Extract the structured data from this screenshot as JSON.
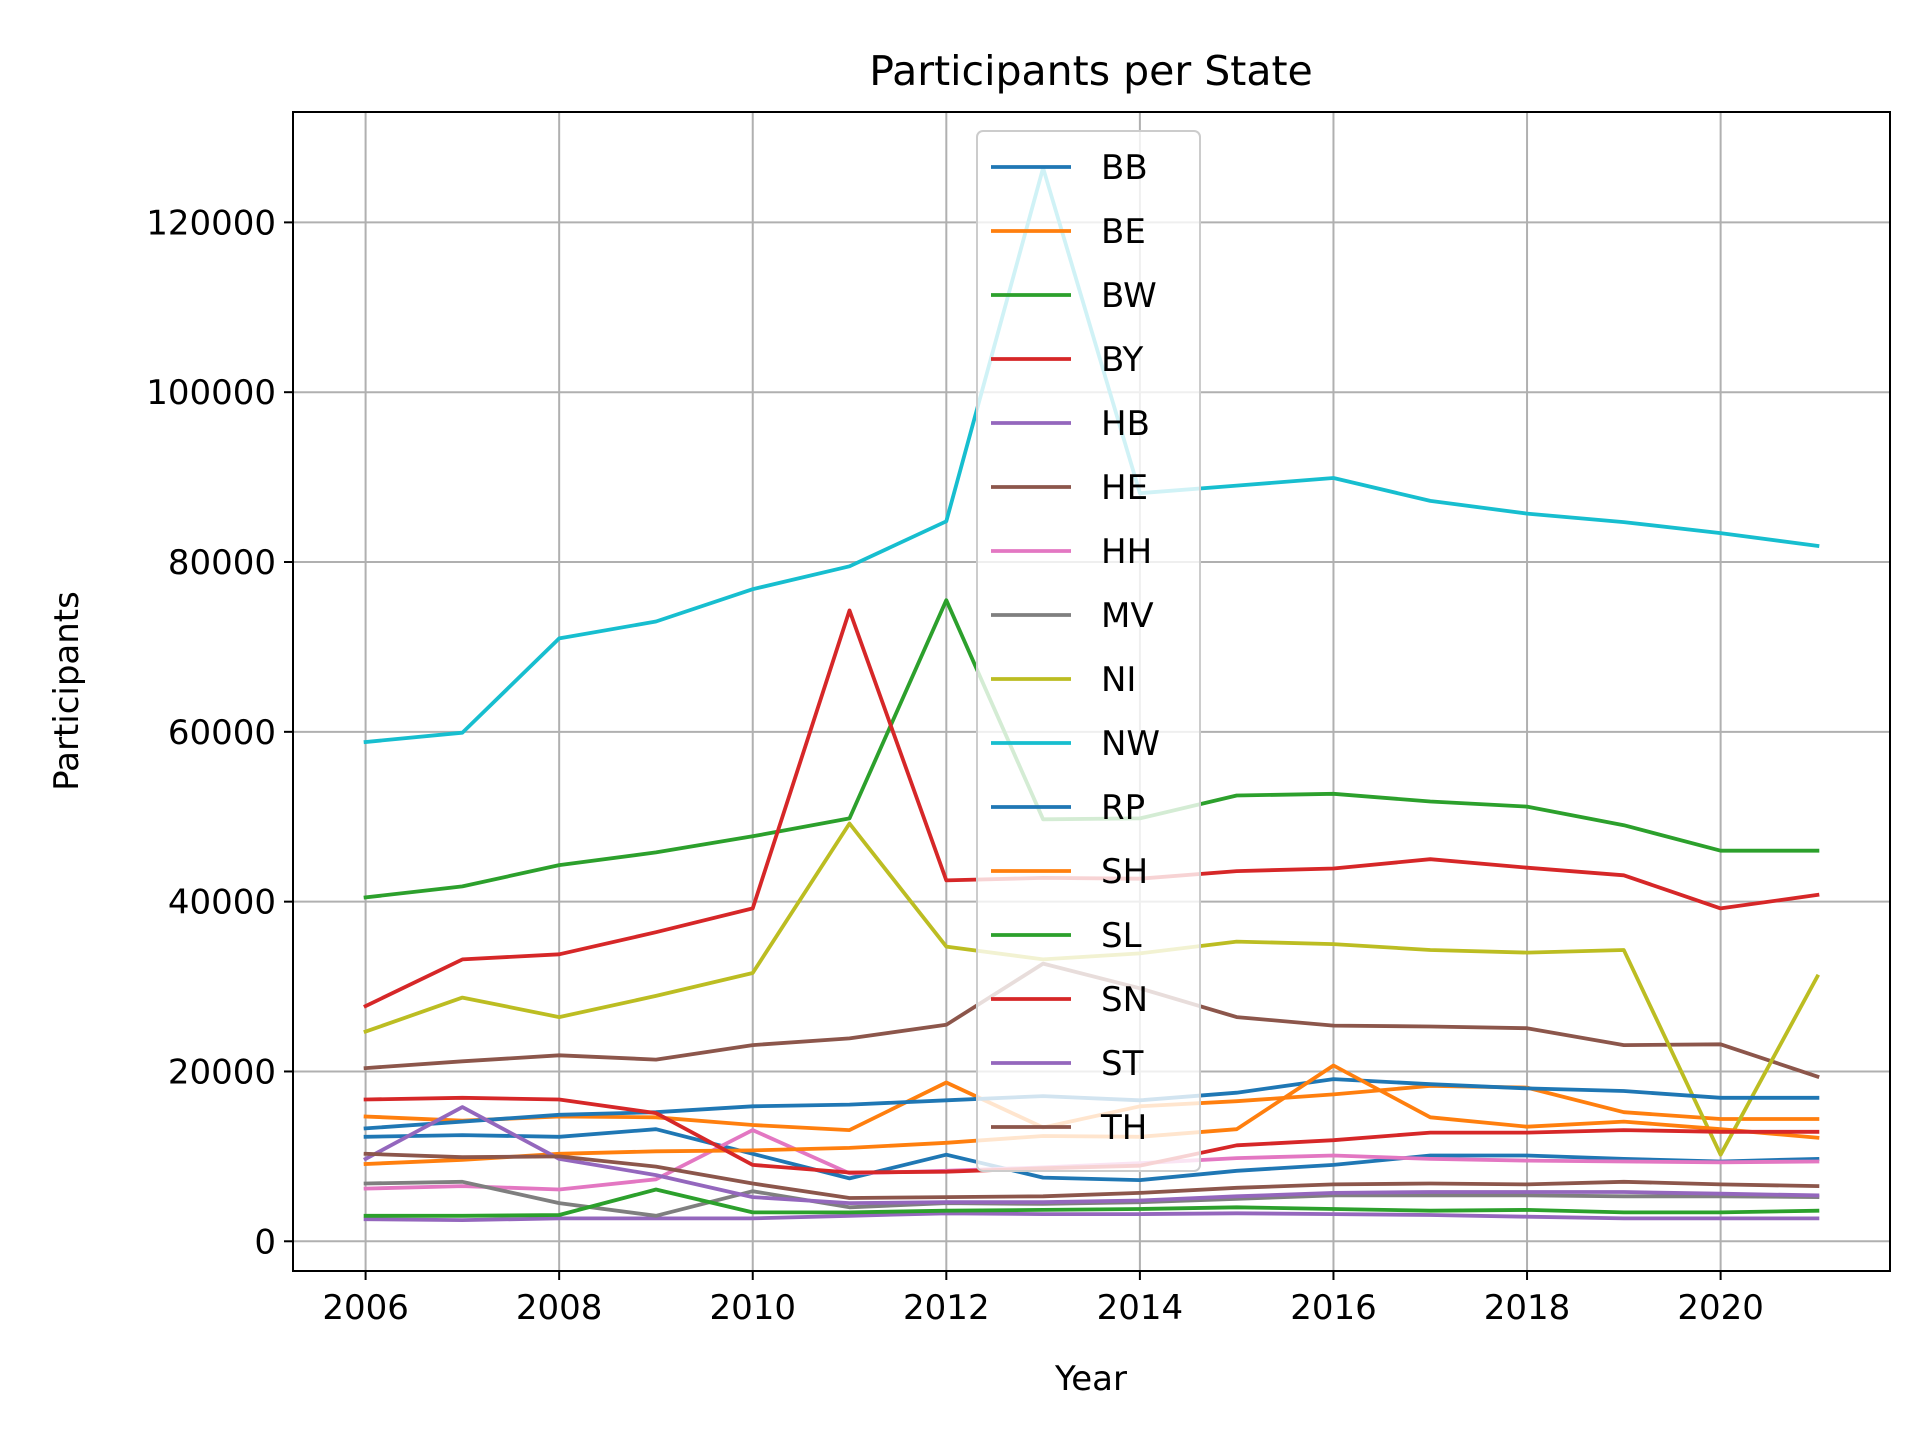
{
  "chart_data": {
    "type": "line",
    "title": "Participants per State",
    "xlabel": "Year",
    "ylabel": "Participants",
    "xlim": [
      2005.25,
      2021.75
    ],
    "ylim": [
      -3500,
      133000
    ],
    "xticks": [
      2006,
      2008,
      2010,
      2012,
      2014,
      2016,
      2018,
      2020
    ],
    "yticks": [
      0,
      20000,
      40000,
      60000,
      80000,
      100000,
      120000
    ],
    "grid": true,
    "legend_position": "upper center",
    "x": [
      2006,
      2007,
      2008,
      2009,
      2010,
      2011,
      2012,
      2013,
      2014,
      2015,
      2016,
      2017,
      2018,
      2019,
      2020,
      2021
    ],
    "series": [
      {
        "name": "BB",
        "color": "#1f77b4",
        "values": [
          12300,
          12500,
          12300,
          13200,
          10300,
          7400,
          10200,
          7500,
          7200,
          8300,
          9000,
          10100,
          10100,
          9700,
          9400,
          9700
        ]
      },
      {
        "name": "BE",
        "color": "#ff7f0e",
        "values": [
          14700,
          14200,
          14700,
          14600,
          13700,
          13100,
          18700,
          13400,
          15900,
          16500,
          17300,
          18300,
          18100,
          15200,
          14400,
          14400
        ]
      },
      {
        "name": "BW",
        "color": "#2ca02c",
        "values": [
          40500,
          41800,
          44300,
          45800,
          47700,
          49800,
          75500,
          49700,
          49800,
          52500,
          52700,
          51800,
          51200,
          49000,
          46000,
          46000
        ]
      },
      {
        "name": "BY",
        "color": "#d62728",
        "values": [
          27700,
          33200,
          33800,
          36400,
          39200,
          74300,
          42500,
          42800,
          42700,
          43600,
          43900,
          45000,
          44000,
          43100,
          39200,
          40800
        ]
      },
      {
        "name": "HB",
        "color": "#9467bd",
        "values": [
          2600,
          2500,
          2700,
          2700,
          2700,
          3000,
          3300,
          3200,
          3200,
          3300,
          3200,
          3100,
          2900,
          2700,
          2700,
          2700
        ]
      },
      {
        "name": "HE",
        "color": "#8c564b",
        "values": [
          20400,
          21200,
          21900,
          21400,
          23100,
          23900,
          25500,
          32700,
          29800,
          26400,
          25400,
          25300,
          25100,
          23100,
          23200,
          19400
        ]
      },
      {
        "name": "HH",
        "color": "#e377c2",
        "values": [
          6200,
          6500,
          6100,
          7300,
          13100,
          8000,
          8300,
          8700,
          9200,
          9800,
          10100,
          9700,
          9500,
          9400,
          9300,
          9400
        ]
      },
      {
        "name": "MV",
        "color": "#7f7f7f",
        "values": [
          6800,
          7000,
          4500,
          3000,
          5900,
          4000,
          4500,
          4400,
          4600,
          5000,
          5400,
          5400,
          5400,
          5300,
          5300,
          5200
        ]
      },
      {
        "name": "NI",
        "color": "#bcbd22",
        "values": [
          24700,
          28700,
          26400,
          28900,
          31600,
          49200,
          34700,
          33200,
          33900,
          35300,
          35000,
          34300,
          34000,
          34300,
          10200,
          31200
        ]
      },
      {
        "name": "NW",
        "color": "#17becf",
        "values": [
          58800,
          59900,
          71000,
          73000,
          76800,
          79500,
          84800,
          126400,
          88100,
          89000,
          89900,
          87200,
          85700,
          84700,
          83400,
          81900
        ]
      },
      {
        "name": "RP",
        "color": "#1f77b4",
        "values": [
          13300,
          14100,
          14900,
          15200,
          15900,
          16100,
          16600,
          17100,
          16600,
          17500,
          19100,
          18500,
          18000,
          17700,
          16900,
          16900
        ]
      },
      {
        "name": "SH",
        "color": "#ff7f0e",
        "values": [
          9100,
          9600,
          10300,
          10600,
          10700,
          11000,
          11600,
          12400,
          12300,
          13200,
          20700,
          14600,
          13500,
          14100,
          13200,
          12200
        ]
      },
      {
        "name": "SL",
        "color": "#2ca02c",
        "values": [
          3000,
          3000,
          3100,
          6100,
          3400,
          3400,
          3600,
          3700,
          3800,
          4000,
          3800,
          3600,
          3700,
          3400,
          3400,
          3600
        ]
      },
      {
        "name": "SN",
        "color": "#d62728",
        "values": [
          16700,
          16900,
          16700,
          15100,
          9000,
          8100,
          8200,
          8600,
          8900,
          11300,
          11900,
          12800,
          12800,
          13100,
          12900,
          12900
        ]
      },
      {
        "name": "ST",
        "color": "#9467bd",
        "values": [
          9700,
          15800,
          9700,
          7800,
          5200,
          4500,
          4600,
          4600,
          4800,
          5300,
          5700,
          5800,
          5800,
          5800,
          5600,
          5400
        ]
      },
      {
        "name": "TH",
        "color": "#8c564b",
        "values": [
          10300,
          9900,
          10000,
          8800,
          6800,
          5100,
          5200,
          5300,
          5700,
          6300,
          6700,
          6800,
          6700,
          7000,
          6700,
          6500
        ]
      }
    ]
  }
}
